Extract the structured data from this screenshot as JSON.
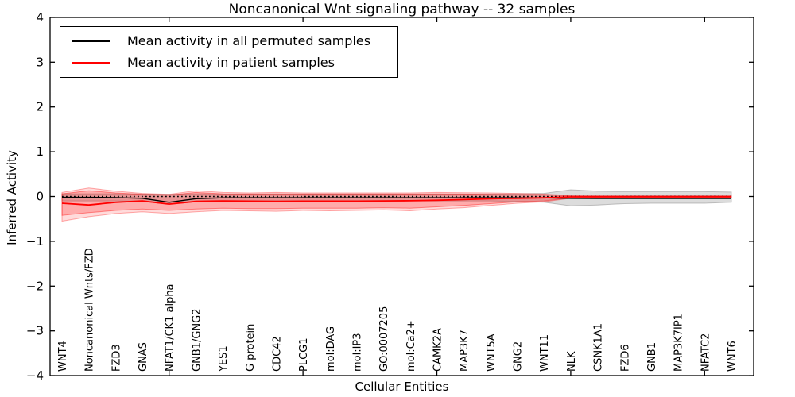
{
  "figure": {
    "title": "Noncanonical Wnt signaling pathway -- 32 samples",
    "xlabel": "Cellular Entities",
    "ylabel": "Inferred Activity"
  },
  "legend": {
    "items": [
      {
        "label": "Mean activity in all permuted samples",
        "color": "#000000"
      },
      {
        "label": "Mean activity in patient samples",
        "color": "#ff0000"
      }
    ]
  },
  "chart_data": {
    "type": "line",
    "title": "Noncanonical Wnt signaling pathway -- 32 samples",
    "xlabel": "Cellular Entities",
    "ylabel": "Inferred Activity",
    "ylim": [
      -4,
      4
    ],
    "yticks": [
      -4,
      -3,
      -2,
      -1,
      0,
      1,
      2,
      3,
      4
    ],
    "grid": false,
    "legend_position": "upper left",
    "x_major_tick_indices": [
      4,
      9,
      14,
      19,
      24
    ],
    "categories": [
      "WNT4",
      "Noncanonical Wnts/FZD",
      "FZD3",
      "GNAS",
      "NFAT1/CK1 alpha",
      "GNB1/GNG2",
      "YES1",
      "G protein",
      "CDC42",
      "PLCG1",
      "mol:DAG",
      "mol:IP3",
      "GO:0007205",
      "mol:Ca2+",
      "CAMK2A",
      "MAP3K7",
      "WNT5A",
      "GNG2",
      "WNT11",
      "NLK",
      "CSNK1A1",
      "FZD6",
      "GNB1",
      "MAP3K7IP1",
      "NFATC2",
      "WNT6"
    ],
    "reference_line": {
      "value": 0.0,
      "style": "dotted",
      "color": "#000000"
    },
    "series": [
      {
        "name": "Mean activity in all permuted samples",
        "color": "#000000",
        "style": "solid",
        "values": [
          -0.02,
          -0.02,
          -0.025,
          -0.04,
          -0.13,
          -0.05,
          -0.03,
          -0.028,
          -0.028,
          -0.028,
          -0.028,
          -0.028,
          -0.028,
          -0.028,
          -0.028,
          -0.028,
          -0.028,
          -0.028,
          -0.03,
          -0.042,
          -0.045,
          -0.045,
          -0.045,
          -0.045,
          -0.045,
          -0.045
        ]
      },
      {
        "name": "Mean activity in patient samples",
        "color": "#ff0000",
        "style": "solid",
        "values": [
          -0.15,
          -0.19,
          -0.13,
          -0.1,
          -0.17,
          -0.11,
          -0.1,
          -0.105,
          -0.11,
          -0.105,
          -0.105,
          -0.105,
          -0.1,
          -0.095,
          -0.085,
          -0.07,
          -0.05,
          -0.04,
          -0.03,
          -0.008,
          -0.005,
          -0.005,
          -0.005,
          -0.005,
          -0.005,
          -0.005
        ]
      }
    ],
    "bands": [
      {
        "name": "permuted-samples-range",
        "color": "#808080",
        "opacity": 0.28,
        "upper": [
          0.06,
          0.06,
          0.06,
          0.055,
          0.05,
          0.06,
          0.055,
          0.055,
          0.055,
          0.055,
          0.055,
          0.055,
          0.055,
          0.055,
          0.055,
          0.055,
          0.055,
          0.06,
          0.07,
          0.15,
          0.12,
          0.11,
          0.11,
          0.11,
          0.11,
          0.1
        ],
        "lower": [
          -0.1,
          -0.1,
          -0.1,
          -0.11,
          -0.17,
          -0.12,
          -0.1,
          -0.1,
          -0.1,
          -0.1,
          -0.1,
          -0.1,
          -0.1,
          -0.1,
          -0.1,
          -0.1,
          -0.1,
          -0.11,
          -0.13,
          -0.21,
          -0.19,
          -0.16,
          -0.15,
          -0.15,
          -0.15,
          -0.13
        ]
      },
      {
        "name": "patient-samples-range-outer",
        "color": "#ff0000",
        "opacity": 0.14,
        "upper": [
          0.09,
          0.19,
          0.12,
          0.07,
          0.05,
          0.13,
          0.09,
          0.08,
          0.09,
          0.08,
          0.08,
          0.08,
          0.08,
          0.08,
          0.09,
          0.085,
          0.08,
          0.07,
          0.055,
          0.02,
          0.012,
          0.012,
          0.012,
          0.012,
          0.012,
          0.012
        ],
        "lower": [
          -0.55,
          -0.45,
          -0.38,
          -0.34,
          -0.38,
          -0.34,
          -0.31,
          -0.32,
          -0.33,
          -0.31,
          -0.32,
          -0.31,
          -0.3,
          -0.32,
          -0.28,
          -0.25,
          -0.2,
          -0.15,
          -0.12,
          -0.04,
          -0.025,
          -0.025,
          -0.025,
          -0.025,
          -0.025,
          -0.025
        ]
      },
      {
        "name": "patient-samples-range-inner",
        "color": "#ff0000",
        "opacity": 0.22,
        "upper": [
          0.06,
          0.13,
          0.08,
          0.05,
          0.03,
          0.09,
          0.06,
          0.055,
          0.06,
          0.055,
          0.055,
          0.055,
          0.055,
          0.055,
          0.06,
          0.055,
          0.05,
          0.045,
          0.04,
          0.015,
          0.01,
          0.01,
          0.01,
          0.01,
          0.01,
          0.01
        ],
        "lower": [
          -0.42,
          -0.36,
          -0.31,
          -0.28,
          -0.31,
          -0.28,
          -0.26,
          -0.27,
          -0.27,
          -0.26,
          -0.26,
          -0.26,
          -0.25,
          -0.26,
          -0.23,
          -0.2,
          -0.16,
          -0.12,
          -0.1,
          -0.03,
          -0.02,
          -0.02,
          -0.02,
          -0.02,
          -0.02,
          -0.02
        ]
      }
    ]
  }
}
